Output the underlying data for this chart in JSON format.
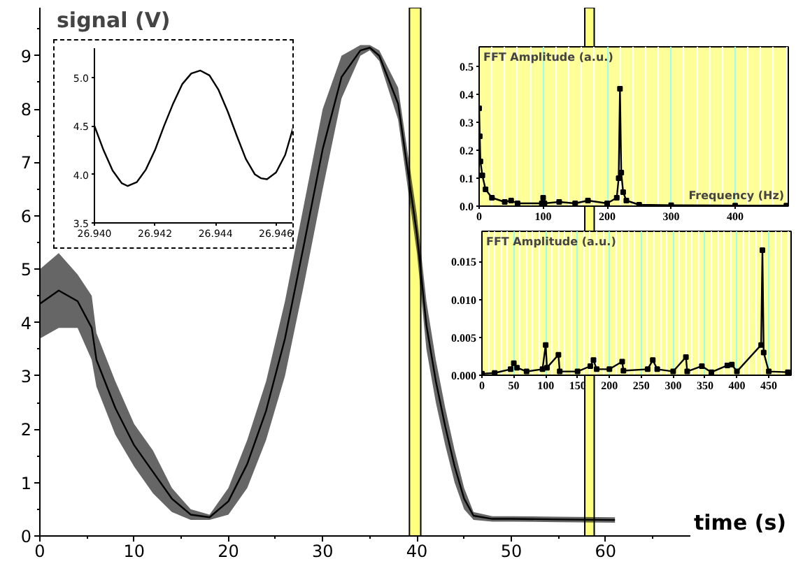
{
  "chart_data": [
    {
      "type": "line",
      "xlabel": "time (s)",
      "ylabel": "signal (V)",
      "xlim": [
        0,
        69
      ],
      "ylim": [
        0,
        9.9
      ],
      "xticks": [
        0,
        10,
        20,
        30,
        40,
        50,
        60
      ],
      "yticks": [
        0,
        1,
        2,
        3,
        4,
        5,
        6,
        7,
        8,
        9
      ],
      "grid": false,
      "series": [
        {
          "color": "#000000",
          "x": [
            0,
            2,
            4,
            5.5,
            6,
            8,
            10,
            12,
            14,
            16,
            18,
            20,
            22,
            24,
            26,
            28,
            30,
            32,
            34,
            35,
            36,
            38,
            40,
            41,
            42,
            43,
            44,
            45,
            46,
            48,
            50,
            55,
            61
          ],
          "values": [
            4.35,
            4.6,
            4.4,
            3.9,
            3.3,
            2.4,
            1.7,
            1.2,
            0.7,
            0.4,
            0.35,
            0.65,
            1.35,
            2.35,
            3.7,
            5.45,
            7.25,
            8.6,
            9.1,
            9.15,
            9.0,
            8.1,
            5.65,
            3.95,
            2.9,
            2.05,
            1.3,
            0.7,
            0.38,
            0.32,
            0.32,
            0.31,
            0.3
          ],
          "lower": [
            3.7,
            3.9,
            3.9,
            3.3,
            2.8,
            1.9,
            1.3,
            0.8,
            0.45,
            0.3,
            0.3,
            0.4,
            0.9,
            1.8,
            3.0,
            4.7,
            6.5,
            8.2,
            9.0,
            9.1,
            8.9,
            7.8,
            5.3,
            3.5,
            2.5,
            1.7,
            1.0,
            0.5,
            0.3,
            0.27,
            0.27,
            0.26,
            0.25
          ],
          "upper": [
            5.0,
            5.3,
            4.9,
            4.5,
            3.8,
            2.9,
            2.1,
            1.6,
            0.9,
            0.5,
            0.4,
            0.9,
            1.8,
            2.9,
            4.4,
            6.2,
            8.0,
            9.0,
            9.2,
            9.2,
            9.1,
            8.4,
            6.0,
            4.4,
            3.3,
            2.4,
            1.6,
            0.9,
            0.45,
            0.37,
            0.37,
            0.36,
            0.35
          ]
        }
      ],
      "bands": [
        {
          "axis": "x",
          "from": 39.2,
          "to": 40.4,
          "color": "#ffff80"
        },
        {
          "axis": "x",
          "from": 57.8,
          "to": 58.8,
          "color": "#ffff80"
        }
      ]
    },
    {
      "type": "line",
      "xlim": [
        26.94,
        26.9467
      ],
      "ylim": [
        3.5,
        5.3
      ],
      "xticks": [
        {
          "value": 26.94,
          "label": "26.940"
        },
        {
          "value": 26.942,
          "label": "26.942"
        },
        {
          "value": 26.944,
          "label": "26.944"
        },
        {
          "value": 26.946,
          "label": "26.946"
        }
      ],
      "yticks": [
        {
          "value": 3.5,
          "label": "3.5"
        },
        {
          "value": 4,
          "label": "4.0"
        },
        {
          "value": 4.5,
          "label": "4.5"
        },
        {
          "value": 5,
          "label": "5.0"
        }
      ],
      "grid": false,
      "series": [
        {
          "color": "#000000",
          "x": [
            26.94,
            26.9403,
            26.9406,
            26.9409,
            26.9411,
            26.9414,
            26.9417,
            26.942,
            26.9423,
            26.9426,
            26.9429,
            26.9432,
            26.9435,
            26.9438,
            26.9441,
            26.9444,
            26.9447,
            26.945,
            26.9453,
            26.9455,
            26.9457,
            26.946,
            26.9463,
            26.9466
          ],
          "values": [
            4.5,
            4.25,
            4.04,
            3.91,
            3.88,
            3.92,
            4.05,
            4.25,
            4.5,
            4.73,
            4.93,
            5.04,
            5.07,
            5.02,
            4.87,
            4.65,
            4.4,
            4.16,
            4.0,
            3.96,
            3.95,
            4.02,
            4.2,
            4.52
          ]
        }
      ]
    },
    {
      "type": "line",
      "xlabel": "Frequency (Hz)",
      "ylabel": "FFT Amplitude (a.u.)",
      "xlim": [
        0,
        483
      ],
      "ylim": [
        0,
        0.57
      ],
      "xticks": [
        0,
        {
          "value": 20,
          "label": null
        },
        {
          "value": 40,
          "label": null
        },
        {
          "value": 60,
          "label": null
        },
        {
          "value": 80,
          "label": null
        },
        100,
        {
          "value": 120,
          "label": null
        },
        {
          "value": 140,
          "label": null
        },
        {
          "value": 160,
          "label": null
        },
        {
          "value": 180,
          "label": null
        },
        200,
        {
          "value": 220,
          "label": null
        },
        {
          "value": 240,
          "label": null
        },
        {
          "value": 260,
          "label": null
        },
        {
          "value": 280,
          "label": null
        },
        300,
        {
          "value": 320,
          "label": null
        },
        {
          "value": 340,
          "label": null
        },
        {
          "value": 360,
          "label": null
        },
        {
          "value": 380,
          "label": null
        },
        400,
        {
          "value": 420,
          "label": null
        },
        {
          "value": 440,
          "label": null
        },
        {
          "value": 460,
          "label": null
        },
        {
          "value": 480,
          "label": null
        }
      ],
      "yticks": [
        {
          "value": 0,
          "label": "0.0"
        },
        0.1,
        0.2,
        0.3,
        0.4,
        0.5
      ],
      "grid": "x",
      "marker": "square",
      "series": [
        {
          "color": "#000000",
          "x": [
            0,
            1,
            2,
            5,
            10,
            20,
            40,
            50,
            60,
            98,
            100,
            102,
            125,
            150,
            170,
            200,
            215,
            218,
            220,
            222,
            225,
            230,
            250,
            300,
            400,
            480
          ],
          "values": [
            0.35,
            0.25,
            0.16,
            0.11,
            0.06,
            0.03,
            0.015,
            0.02,
            0.01,
            0.01,
            0.03,
            0.01,
            0.015,
            0.01,
            0.02,
            0.01,
            0.03,
            0.1,
            0.42,
            0.12,
            0.05,
            0.02,
            0.005,
            0.003,
            0.002,
            0.002
          ]
        }
      ]
    },
    {
      "type": "line",
      "ylabel": "FFT Amplitude (a.u.)",
      "xlim": [
        0,
        485
      ],
      "ylim": [
        0,
        0.019
      ],
      "xticks": [
        0,
        {
          "value": 10,
          "label": null
        },
        {
          "value": 20,
          "label": null
        },
        {
          "value": 30,
          "label": null
        },
        {
          "value": 40,
          "label": null
        },
        50,
        {
          "value": 60,
          "label": null
        },
        {
          "value": 70,
          "label": null
        },
        {
          "value": 80,
          "label": null
        },
        {
          "value": 90,
          "label": null
        },
        100,
        {
          "value": 110,
          "label": null
        },
        {
          "value": 120,
          "label": null
        },
        {
          "value": 130,
          "label": null
        },
        {
          "value": 140,
          "label": null
        },
        150,
        {
          "value": 160,
          "label": null
        },
        {
          "value": 170,
          "label": null
        },
        {
          "value": 180,
          "label": null
        },
        {
          "value": 190,
          "label": null
        },
        200,
        {
          "value": 210,
          "label": null
        },
        {
          "value": 220,
          "label": null
        },
        {
          "value": 230,
          "label": null
        },
        {
          "value": 240,
          "label": null
        },
        250,
        {
          "value": 260,
          "label": null
        },
        {
          "value": 270,
          "label": null
        },
        {
          "value": 280,
          "label": null
        },
        {
          "value": 290,
          "label": null
        },
        300,
        {
          "value": 310,
          "label": null
        },
        {
          "value": 320,
          "label": null
        },
        {
          "value": 330,
          "label": null
        },
        {
          "value": 340,
          "label": null
        },
        350,
        {
          "value": 360,
          "label": null
        },
        {
          "value": 370,
          "label": null
        },
        {
          "value": 380,
          "label": null
        },
        {
          "value": 390,
          "label": null
        },
        400,
        {
          "value": 410,
          "label": null
        },
        {
          "value": 420,
          "label": null
        },
        {
          "value": 430,
          "label": null
        },
        {
          "value": 440,
          "label": null
        },
        450,
        {
          "value": 460,
          "label": null
        },
        {
          "value": 470,
          "label": null
        },
        {
          "value": 480,
          "label": null
        }
      ],
      "yticks": [
        {
          "value": 0,
          "label": "0.000"
        },
        {
          "value": 0.005,
          "label": "0.005"
        },
        {
          "value": 0.01,
          "label": "0.010"
        },
        {
          "value": 0.015,
          "label": "0.015"
        }
      ],
      "grid": "x",
      "marker": "square",
      "series": [
        {
          "color": "#000000",
          "x": [
            0,
            20,
            45,
            50,
            55,
            70,
            95,
            100,
            102,
            120,
            122,
            150,
            170,
            175,
            180,
            200,
            220,
            222,
            260,
            268,
            275,
            300,
            320,
            322,
            345,
            360,
            385,
            392,
            400,
            438,
            440,
            442,
            450,
            480
          ],
          "values": [
            0.0002,
            0.0003,
            0.0008,
            0.0016,
            0.001,
            0.0005,
            0.0008,
            0.004,
            0.001,
            0.0027,
            0.0005,
            0.0005,
            0.0012,
            0.002,
            0.0008,
            0.0008,
            0.0018,
            0.0006,
            0.0008,
            0.002,
            0.0008,
            0.0005,
            0.0024,
            0.0005,
            0.0012,
            0.0004,
            0.0013,
            0.0014,
            0.0005,
            0.004,
            0.0165,
            0.003,
            0.0005,
            0.0004
          ]
        }
      ]
    }
  ]
}
